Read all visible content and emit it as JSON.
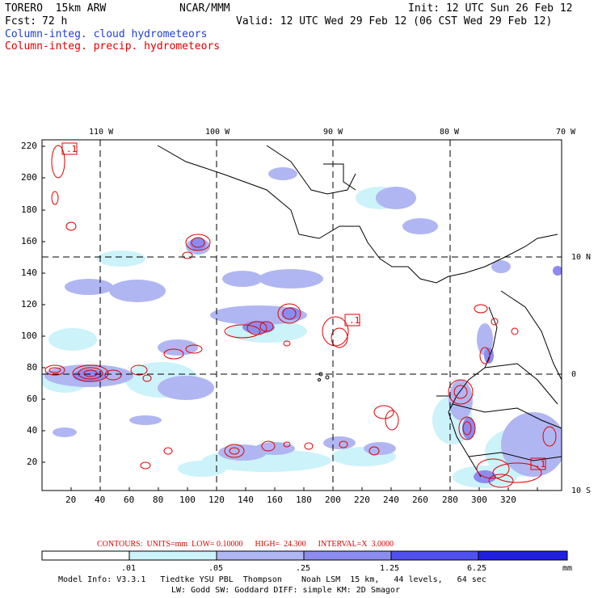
{
  "header": {
    "model": "TORERO  15km ARW",
    "org": "NCAR/MMM",
    "init": "Init: 12 UTC Sun 26 Feb 12",
    "fcst_label": "Fcst:",
    "fcst_value": "72 h",
    "valid": "Valid: 12 UTC Wed 29 Feb 12 (06 CST Wed 29 Feb 12)",
    "line_blue": "Column-integ. cloud hydrometeors",
    "line_red": "Column-integ. precip. hydrometeors"
  },
  "map": {
    "top_labels": [
      "110 W",
      "100 W",
      "90 W",
      "80 W",
      "70 W"
    ],
    "right_labels": [
      "10 N",
      "0",
      "10 S"
    ],
    "y_ticks": [
      "220",
      "200",
      "180",
      "160",
      "140",
      "120",
      "100",
      "80",
      "60",
      "40",
      "20"
    ],
    "x_ticks": [
      "20",
      "40",
      "60",
      "80",
      "100",
      "120",
      "140",
      "160",
      "180",
      "200",
      "220",
      "240",
      "260",
      "280",
      "300",
      "320"
    ],
    "box_label": ".1"
  },
  "contours": {
    "text": "CONTOURS:  UNITS=mm  LOW= 0.10000      HIGH=  24.300      INTERVAL=X  3.0000"
  },
  "colorbar": {
    "labels": [
      ".01",
      ".05",
      ".25",
      "1.25",
      "6.25"
    ],
    "units": "mm",
    "colors": [
      "#ffffff",
      "#ccf2fa",
      "#b0b6f2",
      "#8c8cf0",
      "#5050ee",
      "#2020e0"
    ]
  },
  "footer": {
    "line1": "Model Info: V3.3.1   Tiedtke YSU PBL  Thompson    Noah LSM  15 km,   44 levels,   64 sec",
    "line2": "LW: Godd SW: Goddard DIFF: simple KM: 2D Smagor"
  }
}
